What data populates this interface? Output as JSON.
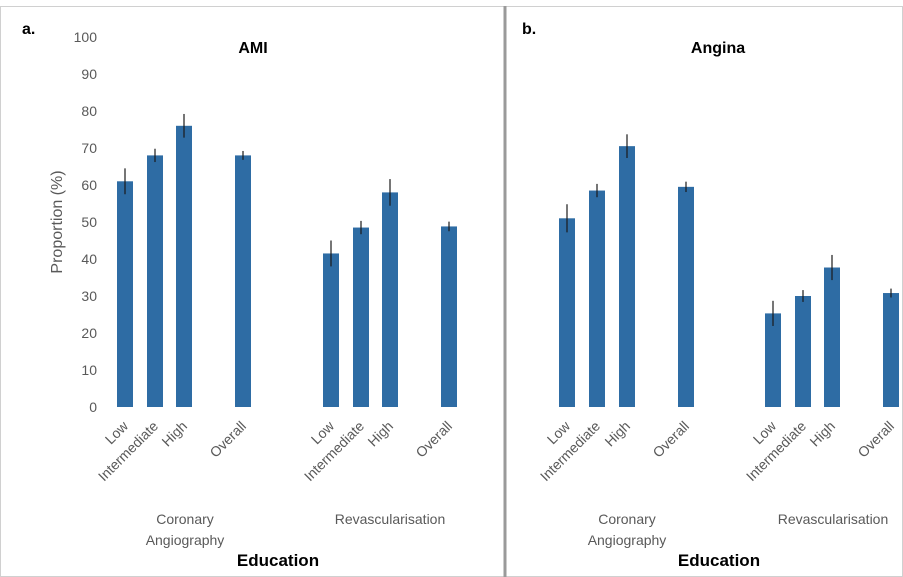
{
  "chart_data": [
    {
      "type": "bar",
      "panel_letter": "a.",
      "title": "AMI",
      "ylabel": "Proportion (%)",
      "xlabel": "Education",
      "ylim": [
        0,
        100
      ],
      "yticks": [
        0,
        10,
        20,
        30,
        40,
        50,
        60,
        70,
        80,
        90,
        100
      ],
      "grid": false,
      "groups": [
        {
          "name": "Coronary Angiography",
          "name_lines": [
            "Coronary",
            "Angiography"
          ],
          "categories": [
            "Low",
            "Intermediate",
            "High",
            "Overall"
          ],
          "values": [
            61,
            68,
            76,
            68
          ],
          "error": [
            3.5,
            1.8,
            3.2,
            1.2
          ]
        },
        {
          "name": "Revascularisation",
          "name_lines": [
            "Revascularisation"
          ],
          "categories": [
            "Low",
            "Intermediate",
            "High",
            "Overall"
          ],
          "values": [
            41.5,
            48.5,
            58,
            48.8
          ],
          "error": [
            3.5,
            1.8,
            3.6,
            1.3
          ]
        }
      ],
      "bar_color": "#2e6ca4"
    },
    {
      "type": "bar",
      "panel_letter": "b.",
      "title": "Angina",
      "xlabel": "Education",
      "ylim": [
        0,
        100
      ],
      "grid": false,
      "groups": [
        {
          "name": "Coronary Angiography",
          "name_lines": [
            "Coronary",
            "Angiography"
          ],
          "categories": [
            "Low",
            "Intermediate",
            "High",
            "Overall"
          ],
          "values": [
            51,
            58.5,
            70.5,
            59.5
          ],
          "error": [
            3.8,
            1.8,
            3.2,
            1.4
          ]
        },
        {
          "name": "Revascularisation",
          "name_lines": [
            "Revascularisation"
          ],
          "categories": [
            "Low",
            "Intermediate",
            "High",
            "Overall"
          ],
          "values": [
            25.3,
            30,
            37.7,
            30.8
          ],
          "error": [
            3.4,
            1.6,
            3.4,
            1.2
          ]
        }
      ],
      "bar_color": "#2e6ca4"
    }
  ]
}
